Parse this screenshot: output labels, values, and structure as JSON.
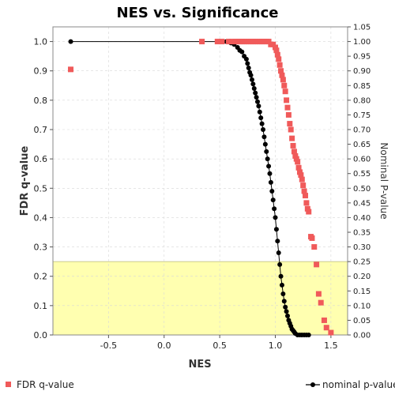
{
  "colors": {
    "fdr": "#f05a5a",
    "nominal": "#000000",
    "highlight": "#ffffb0",
    "grid": "#d8d8d8"
  },
  "chart_data": {
    "type": "scatter",
    "title": "NES vs. Significance",
    "xlabel": "NES",
    "ylabel": "FDR q-value",
    "y2label": "Nominal P-value",
    "xlim": [
      -1.0,
      1.65
    ],
    "ylim": [
      0,
      1.05
    ],
    "y2lim": [
      0,
      1.05
    ],
    "xticks": [
      "-0.5",
      "0.0",
      "0.5",
      "1.0",
      "1.5"
    ],
    "xtick_values": [
      -0.5,
      0.0,
      0.5,
      1.0,
      1.5
    ],
    "yticks": [
      "0.0",
      "0.1",
      "0.2",
      "0.3",
      "0.4",
      "0.5",
      "0.6",
      "0.7",
      "0.8",
      "0.9",
      "1.0"
    ],
    "ytick_values": [
      0,
      0.1,
      0.2,
      0.3,
      0.4,
      0.5,
      0.6,
      0.7,
      0.8,
      0.9,
      1.0
    ],
    "y2ticks": [
      "0.00",
      "0.05",
      "0.10",
      "0.15",
      "0.20",
      "0.25",
      "0.30",
      "0.35",
      "0.40",
      "0.45",
      "0.50",
      "0.55",
      "0.60",
      "0.65",
      "0.70",
      "0.75",
      "0.80",
      "0.85",
      "0.90",
      "0.95",
      "1.00",
      "1.05"
    ],
    "y2tick_values": [
      0,
      0.05,
      0.1,
      0.15,
      0.2,
      0.25,
      0.3,
      0.35,
      0.4,
      0.45,
      0.5,
      0.55,
      0.6,
      0.65,
      0.7,
      0.75,
      0.8,
      0.85,
      0.9,
      0.95,
      1.0,
      1.05
    ],
    "grid": true,
    "highlight_region": {
      "y_from": 0,
      "y_to": 0.25
    },
    "legend_position": "bottom",
    "series": [
      {
        "name": "FDR q-value",
        "marker": "square",
        "axis": "left",
        "points": [
          [
            -0.84,
            0.905
          ],
          [
            0.34,
            1.0
          ],
          [
            0.48,
            1.0
          ],
          [
            0.52,
            1.0
          ],
          [
            0.58,
            1.0
          ],
          [
            0.61,
            1.0
          ],
          [
            0.64,
            1.0
          ],
          [
            0.66,
            1.0
          ],
          [
            0.68,
            1.0
          ],
          [
            0.7,
            1.0
          ],
          [
            0.72,
            1.0
          ],
          [
            0.74,
            1.0
          ],
          [
            0.76,
            1.0
          ],
          [
            0.78,
            1.0
          ],
          [
            0.8,
            1.0
          ],
          [
            0.82,
            1.0
          ],
          [
            0.84,
            1.0
          ],
          [
            0.86,
            1.0
          ],
          [
            0.88,
            1.0
          ],
          [
            0.9,
            1.0
          ],
          [
            0.92,
            1.0
          ],
          [
            0.94,
            1.0
          ],
          [
            0.96,
            0.99
          ],
          [
            0.98,
            0.99
          ],
          [
            1.0,
            0.98
          ],
          [
            1.01,
            0.97
          ],
          [
            1.02,
            0.955
          ],
          [
            1.03,
            0.94
          ],
          [
            1.04,
            0.92
          ],
          [
            1.05,
            0.9
          ],
          [
            1.06,
            0.885
          ],
          [
            1.07,
            0.87
          ],
          [
            1.08,
            0.85
          ],
          [
            1.09,
            0.83
          ],
          [
            1.1,
            0.8
          ],
          [
            1.11,
            0.775
          ],
          [
            1.12,
            0.75
          ],
          [
            1.13,
            0.72
          ],
          [
            1.14,
            0.7
          ],
          [
            1.15,
            0.67
          ],
          [
            1.16,
            0.645
          ],
          [
            1.17,
            0.625
          ],
          [
            1.18,
            0.61
          ],
          [
            1.19,
            0.6
          ],
          [
            1.2,
            0.59
          ],
          [
            1.21,
            0.57
          ],
          [
            1.22,
            0.555
          ],
          [
            1.23,
            0.545
          ],
          [
            1.24,
            0.53
          ],
          [
            1.25,
            0.51
          ],
          [
            1.26,
            0.49
          ],
          [
            1.27,
            0.475
          ],
          [
            1.28,
            0.45
          ],
          [
            1.29,
            0.43
          ],
          [
            1.3,
            0.42
          ],
          [
            1.32,
            0.335
          ],
          [
            1.33,
            0.33
          ],
          [
            1.35,
            0.3
          ],
          [
            1.37,
            0.24
          ],
          [
            1.39,
            0.14
          ],
          [
            1.41,
            0.11
          ],
          [
            1.44,
            0.05
          ],
          [
            1.46,
            0.025
          ],
          [
            1.5,
            0.008
          ]
        ]
      },
      {
        "name": "nominal p-value",
        "marker": "circle",
        "axis": "right",
        "points": [
          [
            -0.84,
            1.0
          ],
          [
            0.48,
            1.0
          ],
          [
            0.56,
            1.0
          ],
          [
            0.6,
            0.995
          ],
          [
            0.63,
            0.99
          ],
          [
            0.66,
            0.98
          ],
          [
            0.68,
            0.97
          ],
          [
            0.7,
            0.965
          ],
          [
            0.72,
            0.95
          ],
          [
            0.74,
            0.94
          ],
          [
            0.75,
            0.925
          ],
          [
            0.76,
            0.91
          ],
          [
            0.77,
            0.895
          ],
          [
            0.78,
            0.885
          ],
          [
            0.79,
            0.87
          ],
          [
            0.8,
            0.855
          ],
          [
            0.81,
            0.84
          ],
          [
            0.82,
            0.825
          ],
          [
            0.83,
            0.81
          ],
          [
            0.84,
            0.795
          ],
          [
            0.85,
            0.78
          ],
          [
            0.86,
            0.76
          ],
          [
            0.87,
            0.74
          ],
          [
            0.88,
            0.72
          ],
          [
            0.89,
            0.7
          ],
          [
            0.9,
            0.675
          ],
          [
            0.91,
            0.65
          ],
          [
            0.92,
            0.625
          ],
          [
            0.93,
            0.6
          ],
          [
            0.94,
            0.575
          ],
          [
            0.95,
            0.55
          ],
          [
            0.96,
            0.52
          ],
          [
            0.97,
            0.49
          ],
          [
            0.98,
            0.46
          ],
          [
            0.99,
            0.43
          ],
          [
            1.0,
            0.4
          ],
          [
            1.01,
            0.36
          ],
          [
            1.02,
            0.32
          ],
          [
            1.03,
            0.28
          ],
          [
            1.04,
            0.24
          ],
          [
            1.05,
            0.2
          ],
          [
            1.06,
            0.17
          ],
          [
            1.07,
            0.14
          ],
          [
            1.08,
            0.115
          ],
          [
            1.09,
            0.095
          ],
          [
            1.1,
            0.08
          ],
          [
            1.11,
            0.065
          ],
          [
            1.12,
            0.05
          ],
          [
            1.13,
            0.04
          ],
          [
            1.14,
            0.03
          ],
          [
            1.15,
            0.02
          ],
          [
            1.16,
            0.015
          ],
          [
            1.17,
            0.01
          ],
          [
            1.18,
            0.005
          ],
          [
            1.2,
            0.0
          ],
          [
            1.22,
            0.0
          ],
          [
            1.24,
            0.0
          ],
          [
            1.26,
            0.0
          ],
          [
            1.28,
            0.0
          ],
          [
            1.3,
            0.0
          ]
        ]
      }
    ]
  }
}
